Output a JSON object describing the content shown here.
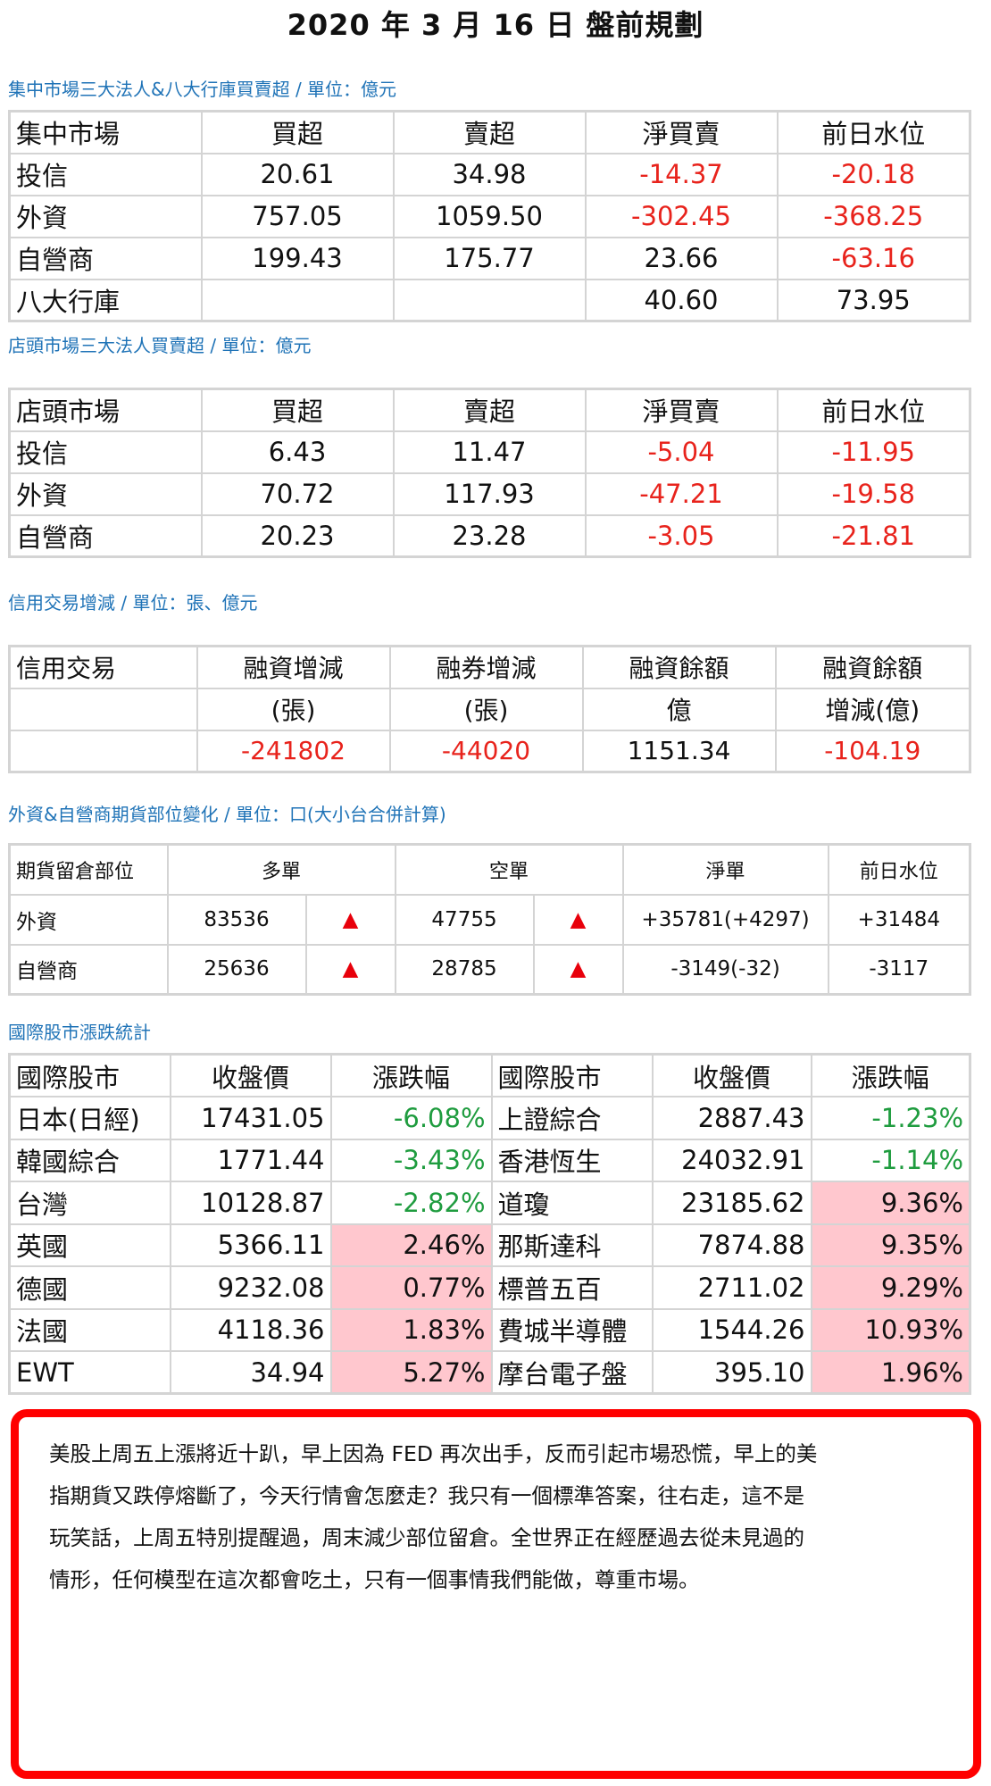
{
  "title": "2020 年 3 月 16 日  盤前規劃",
  "main_market": {
    "label": "集中市場三大法人&八大行庫買賣超 / 單位：億元",
    "headers": [
      "集中市場",
      "買超",
      "賣超",
      "淨買賣",
      "前日水位"
    ],
    "rows": [
      [
        "投信",
        "20.61",
        "34.98",
        "-14.37",
        "-20.18"
      ],
      [
        "外資",
        "757.05",
        "1059.50",
        "-302.45",
        "-368.25"
      ],
      [
        "自營商",
        "199.43",
        "175.77",
        "23.66",
        "-63.16"
      ],
      [
        "八大行庫",
        "",
        "",
        "40.60",
        "73.95"
      ]
    ]
  },
  "otc_market": {
    "label": "店頭市場三大法人買賣超 / 單位：億元",
    "headers": [
      "店頭市場",
      "買超",
      "賣超",
      "淨買賣",
      "前日水位"
    ],
    "rows": [
      [
        "投信",
        "6.43",
        "11.47",
        "-5.04",
        "-11.95"
      ],
      [
        "外資",
        "70.72",
        "117.93",
        "-47.21",
        "-19.58"
      ],
      [
        "自營商",
        "20.23",
        "23.28",
        "-3.05",
        "-21.81"
      ]
    ]
  },
  "credit": {
    "label": "信用交易增減 / 單位：張、億元",
    "header1": [
      "信用交易",
      "融資增減",
      "融券增減",
      "融資餘額",
      "融資餘額"
    ],
    "header2": [
      "",
      "(張)",
      "(張)",
      "億",
      "增減(億)"
    ],
    "row": [
      "",
      "-241802",
      "-44020",
      "1151.34",
      "-104.19"
    ]
  },
  "futures": {
    "label": "外資&自營商期貨部位變化 / 單位：口(大小台合併計算)",
    "headers": [
      "期貨留倉部位",
      "多單",
      "空單",
      "淨單",
      "前日水位"
    ],
    "rows": [
      {
        "name": "外資",
        "long": "83536",
        "long_arrow": "▲",
        "short": "47755",
        "short_arrow": "▲",
        "net": "+35781(+4297)",
        "prev": "+31484"
      },
      {
        "name": "自營商",
        "long": "25636",
        "long_arrow": "▲",
        "short": "28785",
        "short_arrow": "▲",
        "net": "-3149(-32)",
        "prev": "-3117"
      }
    ],
    "arrow_color": "#e8000b"
  },
  "intl": {
    "label": "國際股市漲跌統計",
    "headers": [
      "國際股市",
      "收盤價",
      "漲跌幅",
      "國際股市",
      "收盤價",
      "漲跌幅"
    ],
    "rows": [
      [
        "日本(日經)",
        "17431.05",
        "-6.08%",
        "上證綜合",
        "2887.43",
        "-1.23%"
      ],
      [
        "韓國綜合",
        "1771.44",
        "-3.43%",
        "香港恆生",
        "24032.91",
        "-1.14%"
      ],
      [
        "台灣",
        "10128.87",
        "-2.82%",
        "道瓊",
        "23185.62",
        "9.36%"
      ],
      [
        "英國",
        "5366.11",
        "2.46%",
        "那斯達科",
        "7874.88",
        "9.35%"
      ],
      [
        "德國",
        "9232.08",
        "0.77%",
        "標普五百",
        "2711.02",
        "9.29%"
      ],
      [
        "法國",
        "4118.36",
        "1.83%",
        "費城半導體",
        "1544.26",
        "10.93%"
      ],
      [
        "EWT",
        "34.94",
        "5.27%",
        "摩台電子盤",
        "395.10",
        "1.96%"
      ]
    ],
    "up_bg": "#ffc7ce",
    "down_color": "#1f9c3f"
  },
  "comment": {
    "lines": [
      "美股上周五上漲將近十趴，早上因為 FED 再次出手，反而引起市場恐慌，早上的美",
      "指期貨又跌停熔斷了，今天行情會怎麼走？我只有一個標準答案，往右走，這不是",
      "玩笑話，上周五特別提醒過，周末減少部位留倉。全世界正在經歷過去從未見過的",
      "情形，任何模型在這次都會吃土，只有一個事情我們能做，尊重市場。"
    ],
    "border_color": "#ff0000"
  }
}
